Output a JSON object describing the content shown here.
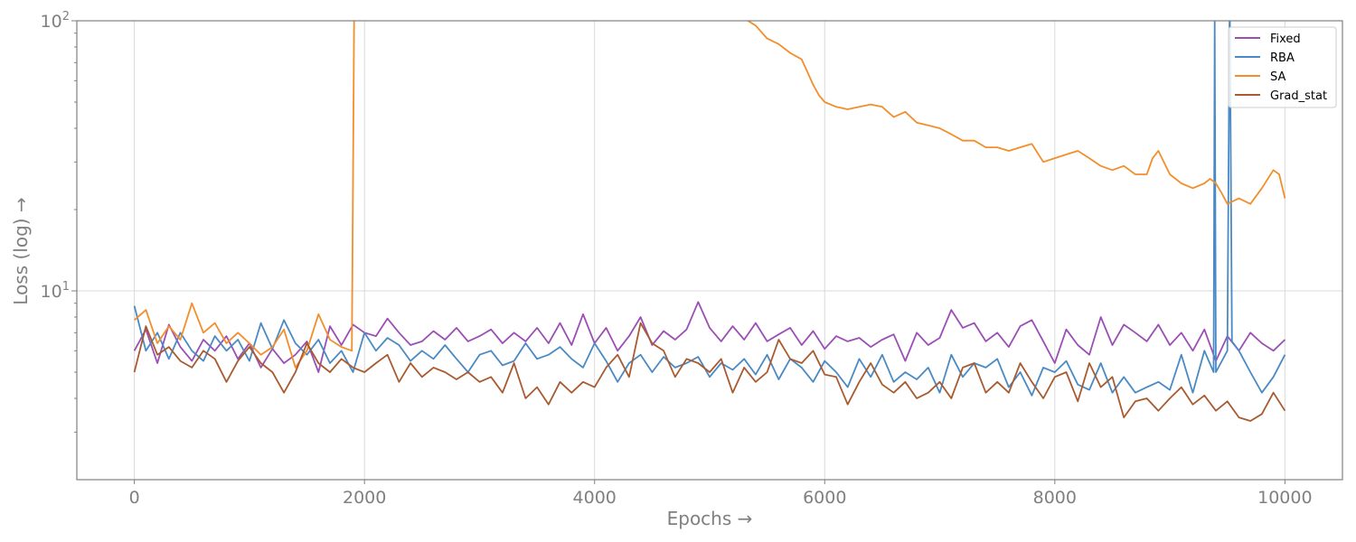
{
  "chart_data": {
    "type": "line",
    "title": "",
    "xlabel": "Epochs →",
    "ylabel": "Loss (log) →",
    "yscale": "log",
    "xlim": [
      -500,
      10500
    ],
    "ylim": [
      2.0,
      100
    ],
    "xticks": [
      0,
      2000,
      4000,
      6000,
      8000,
      10000
    ],
    "xtick_labels": [
      "0",
      "2000",
      "4000",
      "6000",
      "8000",
      "10000"
    ],
    "yticks": [
      10,
      100
    ],
    "ytick_labels": [
      {
        "base": "10",
        "exp": "1"
      },
      {
        "base": "10",
        "exp": "2"
      }
    ],
    "grid": true,
    "legend_position": "top-right",
    "series": [
      {
        "name": "Fixed",
        "color": "#9b4fb5",
        "x": [
          0,
          100,
          200,
          300,
          400,
          500,
          600,
          700,
          800,
          900,
          1000,
          1100,
          1200,
          1300,
          1400,
          1500,
          1600,
          1700,
          1800,
          1900,
          2000,
          2100,
          2200,
          2300,
          2400,
          2500,
          2600,
          2700,
          2800,
          2900,
          3000,
          3100,
          3200,
          3300,
          3400,
          3500,
          3600,
          3700,
          3800,
          3900,
          4000,
          4100,
          4200,
          4300,
          4400,
          4500,
          4600,
          4700,
          4800,
          4900,
          5000,
          5100,
          5200,
          5300,
          5400,
          5500,
          5600,
          5700,
          5800,
          5900,
          6000,
          6100,
          6200,
          6300,
          6400,
          6500,
          6600,
          6700,
          6800,
          6900,
          7000,
          7100,
          7200,
          7300,
          7400,
          7500,
          7600,
          7700,
          7800,
          7900,
          8000,
          8100,
          8200,
          8300,
          8400,
          8500,
          8600,
          8700,
          8800,
          8900,
          9000,
          9100,
          9200,
          9300,
          9400,
          9500,
          9600,
          9700,
          9800,
          9900,
          10000
        ],
        "y": [
          6.0,
          7.2,
          5.4,
          7.5,
          6.2,
          5.5,
          6.6,
          6.0,
          6.8,
          5.6,
          6.4,
          5.2,
          6.1,
          5.4,
          5.8,
          6.5,
          5.0,
          7.4,
          6.3,
          7.5,
          7.0,
          6.8,
          7.9,
          7.0,
          6.3,
          6.5,
          7.1,
          6.6,
          7.3,
          6.5,
          6.8,
          7.2,
          6.4,
          7.0,
          6.5,
          7.3,
          6.4,
          7.6,
          6.3,
          8.2,
          6.4,
          7.3,
          6.0,
          6.8,
          8.0,
          6.3,
          7.1,
          6.6,
          7.2,
          9.1,
          7.3,
          6.5,
          7.4,
          6.6,
          7.6,
          6.5,
          6.9,
          7.3,
          6.3,
          7.1,
          6.1,
          6.8,
          6.5,
          6.7,
          6.2,
          6.6,
          6.9,
          5.5,
          7.0,
          6.3,
          6.7,
          8.5,
          7.3,
          7.6,
          6.5,
          7.0,
          6.2,
          7.4,
          7.8,
          6.5,
          5.4,
          7.2,
          6.3,
          5.8,
          8.0,
          6.3,
          7.5,
          7.0,
          6.5,
          7.5,
          6.3,
          7.0,
          6.0,
          7.2,
          5.5,
          6.8,
          6.0,
          7.0,
          6.4,
          6.0,
          6.6
        ],
        "width": 1.8
      },
      {
        "name": "RBA",
        "color": "#4a8ac4",
        "x": [
          0,
          100,
          200,
          300,
          400,
          500,
          600,
          700,
          800,
          900,
          1000,
          1100,
          1200,
          1300,
          1400,
          1500,
          1600,
          1700,
          1800,
          1900,
          2000,
          2100,
          2200,
          2300,
          2400,
          2500,
          2600,
          2700,
          2800,
          2900,
          3000,
          3100,
          3200,
          3300,
          3400,
          3500,
          3600,
          3700,
          3800,
          3900,
          4000,
          4100,
          4200,
          4300,
          4400,
          4500,
          4600,
          4700,
          4800,
          4900,
          5000,
          5100,
          5200,
          5300,
          5400,
          5500,
          5600,
          5700,
          5800,
          5900,
          6000,
          6100,
          6200,
          6300,
          6400,
          6500,
          6600,
          6700,
          6800,
          6900,
          7000,
          7100,
          7200,
          7300,
          7400,
          7500,
          7600,
          7700,
          7800,
          7900,
          8000,
          8100,
          8200,
          8300,
          8400,
          8500,
          8600,
          8700,
          8800,
          8900,
          9000,
          9100,
          9200,
          9300,
          9380,
          9390,
          9400,
          9500,
          9520,
          9540,
          9600,
          9700,
          9800,
          9900,
          10000
        ],
        "y": [
          8.8,
          6.0,
          7.0,
          5.6,
          7.0,
          6.0,
          5.5,
          6.8,
          6.0,
          6.6,
          5.5,
          7.6,
          6.1,
          7.8,
          6.4,
          5.8,
          6.6,
          5.4,
          6.0,
          5.0,
          7.0,
          6.0,
          6.7,
          6.3,
          5.5,
          6.0,
          5.6,
          6.3,
          5.6,
          5.0,
          5.8,
          6.0,
          5.3,
          5.5,
          6.4,
          5.6,
          5.8,
          6.2,
          5.6,
          5.2,
          6.4,
          5.5,
          4.6,
          5.4,
          5.8,
          5.0,
          5.7,
          5.2,
          5.4,
          5.7,
          4.8,
          5.4,
          5.1,
          5.6,
          4.9,
          5.8,
          4.7,
          5.6,
          5.2,
          4.6,
          5.5,
          5.0,
          4.4,
          5.6,
          4.8,
          5.8,
          4.6,
          5.0,
          4.7,
          5.2,
          4.2,
          5.8,
          4.8,
          5.4,
          5.2,
          5.6,
          4.4,
          5.0,
          4.1,
          5.2,
          5.0,
          5.5,
          4.5,
          4.3,
          5.4,
          4.2,
          4.8,
          4.2,
          4.4,
          4.6,
          4.3,
          5.8,
          4.2,
          6.0,
          5.0,
          100,
          5.0,
          6.0,
          130,
          6.5,
          6.0,
          5.0,
          4.2,
          4.8,
          5.8
        ],
        "width": 1.8
      },
      {
        "name": "SA",
        "color": "#f28e2b",
        "x": [
          0,
          100,
          200,
          300,
          400,
          500,
          600,
          700,
          800,
          900,
          1000,
          1100,
          1200,
          1300,
          1400,
          1500,
          1600,
          1700,
          1800,
          1890,
          1910,
          1920,
          5300,
          5400,
          5500,
          5600,
          5700,
          5800,
          5900,
          5950,
          6000,
          6100,
          6200,
          6300,
          6400,
          6500,
          6600,
          6700,
          6800,
          6900,
          7000,
          7100,
          7200,
          7300,
          7400,
          7500,
          7600,
          7700,
          7800,
          7900,
          8000,
          8100,
          8200,
          8300,
          8400,
          8500,
          8600,
          8700,
          8800,
          8850,
          8900,
          9000,
          9100,
          9200,
          9300,
          9350,
          9400,
          9450,
          9500,
          9600,
          9700,
          9800,
          9900,
          9950,
          10000
        ],
        "y": [
          7.8,
          8.5,
          6.4,
          7.4,
          6.6,
          9.0,
          7.0,
          7.6,
          6.4,
          7.0,
          6.4,
          5.8,
          6.2,
          7.2,
          5.2,
          6.0,
          8.2,
          6.6,
          6.2,
          6.0,
          100,
          130,
          102,
          96,
          86,
          82,
          76,
          72,
          58,
          53,
          50,
          48,
          47,
          48,
          49,
          48,
          44,
          46,
          42,
          41,
          40,
          38,
          36,
          36,
          34,
          34,
          33,
          34,
          35,
          30,
          31,
          32,
          33,
          31,
          29,
          28,
          29,
          27,
          27,
          31,
          33,
          27,
          25,
          24,
          25,
          26,
          25,
          23,
          21,
          22,
          21,
          24,
          28,
          27,
          22
        ],
        "width": 1.8
      },
      {
        "name": "Grad_stat",
        "color": "#a85b30",
        "x": [
          0,
          100,
          200,
          300,
          400,
          500,
          600,
          700,
          800,
          900,
          1000,
          1100,
          1200,
          1300,
          1400,
          1500,
          1600,
          1700,
          1800,
          1900,
          2000,
          2100,
          2200,
          2300,
          2400,
          2500,
          2600,
          2700,
          2800,
          2900,
          3000,
          3100,
          3200,
          3300,
          3400,
          3500,
          3600,
          3700,
          3800,
          3900,
          4000,
          4100,
          4200,
          4300,
          4400,
          4500,
          4600,
          4700,
          4800,
          4900,
          5000,
          5100,
          5200,
          5300,
          5400,
          5500,
          5600,
          5700,
          5800,
          5900,
          6000,
          6100,
          6200,
          6300,
          6400,
          6500,
          6600,
          6700,
          6800,
          6900,
          7000,
          7100,
          7200,
          7300,
          7400,
          7500,
          7600,
          7700,
          7800,
          7900,
          8000,
          8100,
          8200,
          8300,
          8400,
          8500,
          8600,
          8700,
          8800,
          8900,
          9000,
          9100,
          9200,
          9300,
          9400,
          9500,
          9600,
          9700,
          9800,
          9900,
          10000
        ],
        "y": [
          5.0,
          7.4,
          5.8,
          6.2,
          5.5,
          5.2,
          6.0,
          5.6,
          4.6,
          5.5,
          6.2,
          5.4,
          5.0,
          4.2,
          5.0,
          6.4,
          5.4,
          5.0,
          5.6,
          5.2,
          5.0,
          5.4,
          5.8,
          4.6,
          5.4,
          4.8,
          5.2,
          5.0,
          4.7,
          5.0,
          4.6,
          4.8,
          4.2,
          5.4,
          4.0,
          4.4,
          3.8,
          4.6,
          4.2,
          4.6,
          4.4,
          5.2,
          5.8,
          4.8,
          7.6,
          6.4,
          6.0,
          4.8,
          5.6,
          5.4,
          5.0,
          5.6,
          4.2,
          5.2,
          4.6,
          5.0,
          6.6,
          5.6,
          5.4,
          6.0,
          4.9,
          4.8,
          3.8,
          4.6,
          5.4,
          4.5,
          4.2,
          4.6,
          4.0,
          4.2,
          4.6,
          4.0,
          5.2,
          5.4,
          4.2,
          4.6,
          4.2,
          5.4,
          4.6,
          4.0,
          4.8,
          5.0,
          3.9,
          5.4,
          4.4,
          4.8,
          3.4,
          3.9,
          4.0,
          3.6,
          4.0,
          4.4,
          3.8,
          4.1,
          3.6,
          3.9,
          3.4,
          3.3,
          3.5,
          4.2,
          3.6
        ],
        "width": 1.8
      }
    ]
  }
}
